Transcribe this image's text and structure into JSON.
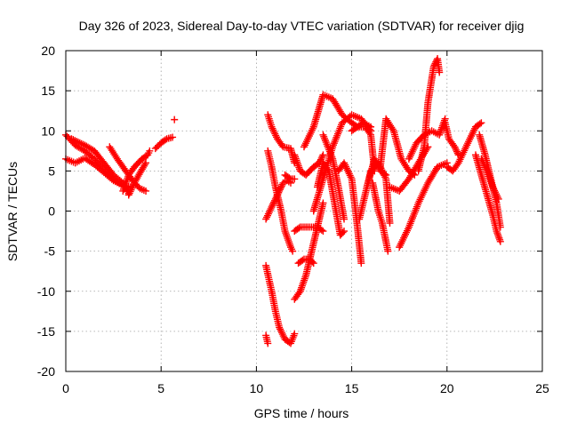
{
  "chart_data": {
    "type": "scatter",
    "title": "Day 326 of 2023, Sidereal Day-to-day VTEC variation (SDTVAR) for receiver djig",
    "xlabel": "GPS time / hours",
    "ylabel": "SDTVAR / TECUs",
    "xlim": [
      0,
      25
    ],
    "ylim": [
      -20,
      20
    ],
    "x_ticks": [
      0,
      5,
      10,
      15,
      20,
      25
    ],
    "y_ticks": [
      -20,
      -15,
      -10,
      -5,
      0,
      5,
      10,
      15,
      20
    ],
    "x_tick_labels": [
      "0",
      "5",
      "10",
      "15",
      "20",
      "25"
    ],
    "y_tick_labels": [
      "-20",
      "-15",
      "-10",
      "-5",
      "0",
      "5",
      "10",
      "15",
      "20"
    ],
    "grid": true,
    "marker": "plus",
    "color": "#ff0000",
    "series": [
      {
        "x": [
          0.0,
          0.5,
          1.0,
          1.5,
          2.0,
          2.5,
          3.0,
          3.3
        ],
        "y": [
          9.5,
          8.2,
          7.5,
          6.5,
          5.2,
          4.0,
          3.2,
          2.8
        ]
      },
      {
        "x": [
          0.0,
          0.5,
          1.0,
          1.5,
          2.0,
          2.5,
          3.0,
          3.4
        ],
        "y": [
          6.5,
          6.0,
          6.6,
          5.8,
          4.8,
          3.8,
          3.2,
          3.0
        ]
      },
      {
        "x": [
          0.3,
          1.0,
          1.5,
          2.0,
          2.5,
          3.0,
          3.3
        ],
        "y": [
          9.0,
          8.2,
          7.5,
          6.0,
          4.5,
          3.5,
          2.2
        ]
      },
      {
        "x": [
          2.3,
          2.7,
          3.0,
          3.3,
          3.6,
          3.9,
          4.2
        ],
        "y": [
          8.0,
          6.5,
          5.5,
          4.5,
          3.5,
          2.8,
          2.5
        ]
      },
      {
        "x": [
          3.0,
          3.3,
          3.6,
          4.0,
          4.3,
          4.4
        ],
        "y": [
          2.5,
          4.5,
          5.5,
          6.5,
          7.0,
          7.5
        ]
      },
      {
        "x": [
          3.3,
          3.6,
          3.9,
          4.2
        ],
        "y": [
          2.0,
          3.5,
          4.8,
          6.0
        ]
      },
      {
        "x": [
          4.7,
          5.0,
          5.3,
          5.6
        ],
        "y": [
          7.8,
          8.5,
          9.0,
          9.2
        ]
      },
      {
        "x": [
          5.7
        ],
        "y": [
          11.4
        ]
      },
      {
        "x": [
          10.5,
          10.8,
          11.0,
          11.2,
          11.5,
          11.8,
          12.0
        ],
        "y": [
          -6.8,
          -10.0,
          -12.5,
          -14.5,
          -16.0,
          -16.5,
          -15.3
        ]
      },
      {
        "x": [
          10.5,
          10.6
        ],
        "y": [
          -15.5,
          -16.5
        ]
      },
      {
        "x": [
          10.5,
          10.8,
          11.0,
          11.2,
          11.4,
          11.6,
          11.8
        ],
        "y": [
          -1.0,
          0.5,
          1.5,
          2.5,
          3.5,
          3.8,
          3.5
        ]
      },
      {
        "x": [
          10.6,
          10.8,
          11.0,
          11.3,
          11.5,
          11.8,
          11.9
        ],
        "y": [
          7.5,
          5.5,
          3.0,
          0.0,
          -2.5,
          -4.5,
          -5.0
        ]
      },
      {
        "x": [
          10.6,
          10.8,
          11.1,
          11.4,
          11.8,
          12.0
        ],
        "y": [
          12.0,
          10.5,
          9.0,
          8.0,
          7.8,
          6.0
        ]
      },
      {
        "x": [
          11.5,
          11.8,
          12.0
        ],
        "y": [
          4.5,
          4.0,
          4.0
        ]
      },
      {
        "x": [
          12.0,
          12.3,
          12.6,
          12.9,
          13.2,
          13.5
        ],
        "y": [
          -11.0,
          -10.0,
          -8.0,
          -5.0,
          -2.0,
          1.0
        ]
      },
      {
        "x": [
          12.2,
          12.5,
          12.8,
          13.0
        ],
        "y": [
          -6.5,
          -6.0,
          -6.0,
          -6.5
        ]
      },
      {
        "x": [
          12.0,
          12.3,
          12.7,
          13.2,
          13.5
        ],
        "y": [
          -2.5,
          -2.0,
          -2.0,
          -2.0,
          -2.5
        ]
      },
      {
        "x": [
          12.0,
          12.3,
          12.6,
          13.0,
          13.3,
          13.5
        ],
        "y": [
          7.0,
          5.0,
          4.5,
          5.5,
          6.0,
          7.0
        ]
      },
      {
        "x": [
          12.5,
          13.0,
          13.5,
          14.0,
          14.5,
          15.0,
          15.3,
          15.6,
          16.0
        ],
        "y": [
          8.0,
          10.5,
          14.5,
          14.0,
          12.0,
          11.0,
          10.5,
          11.0,
          10.5
        ]
      },
      {
        "x": [
          13.0,
          13.5,
          14.0,
          14.5,
          15.0,
          15.5,
          16.0
        ],
        "y": [
          0.0,
          4.0,
          8.0,
          11.0,
          12.0,
          11.5,
          10.0
        ]
      },
      {
        "x": [
          13.2,
          13.5,
          13.8,
          14.1,
          14.4,
          14.6
        ],
        "y": [
          3.0,
          6.0,
          5.0,
          1.0,
          -3.0,
          -2.5
        ]
      },
      {
        "x": [
          13.5,
          14.0,
          14.3,
          14.6
        ],
        "y": [
          9.5,
          6.5,
          3.0,
          -1.0
        ]
      },
      {
        "x": [
          14.3,
          14.6,
          15.0,
          15.3,
          15.5
        ],
        "y": [
          5.0,
          6.0,
          4.0,
          -2.0,
          -6.5
        ]
      },
      {
        "x": [
          15.0,
          15.3,
          15.7,
          16.0,
          16.2
        ],
        "y": [
          10.0,
          10.5,
          10.5,
          9.5,
          5.0
        ]
      },
      {
        "x": [
          15.4,
          15.8,
          16.0,
          16.4,
          16.8,
          17.0
        ],
        "y": [
          -1.0,
          3.0,
          5.0,
          6.0,
          4.0,
          -1.5
        ]
      },
      {
        "x": [
          15.8,
          16.2,
          16.5,
          16.8
        ],
        "y": [
          3.0,
          6.5,
          5.0,
          4.5
        ]
      },
      {
        "x": [
          16.1,
          16.4,
          16.6,
          16.9
        ],
        "y": [
          3.5,
          0.0,
          -1.5,
          -5.0
        ]
      },
      {
        "x": [
          16.5,
          16.8,
          17.2,
          17.6,
          18.0,
          18.3
        ],
        "y": [
          5.5,
          11.5,
          10.0,
          6.5,
          5.0,
          4.5
        ]
      },
      {
        "x": [
          17.5,
          18.0,
          18.5,
          19.0,
          19.5,
          20.0
        ],
        "y": [
          -4.5,
          -2.0,
          1.0,
          3.5,
          5.5,
          6.0
        ]
      },
      {
        "x": [
          17.0,
          17.5,
          18.0,
          18.5,
          19.0
        ],
        "y": [
          3.0,
          2.5,
          4.0,
          6.0,
          8.0
        ]
      },
      {
        "x": [
          18.5,
          18.8,
          19.0,
          19.3,
          19.5,
          19.6
        ],
        "y": [
          5.0,
          8.0,
          13.5,
          18.0,
          19.0,
          17.3
        ]
      },
      {
        "x": [
          18.0,
          18.4,
          18.8,
          19.2,
          19.6,
          19.9
        ],
        "y": [
          6.5,
          8.5,
          9.5,
          10.0,
          9.5,
          11.5
        ]
      },
      {
        "x": [
          19.9,
          20.1,
          20.4,
          20.6
        ],
        "y": [
          11.0,
          9.0,
          8.0,
          7.0
        ]
      },
      {
        "x": [
          20.0,
          20.3,
          20.6,
          21.0,
          21.5,
          21.8
        ],
        "y": [
          5.5,
          5.0,
          6.0,
          8.0,
          10.5,
          11.0
        ]
      },
      {
        "x": [
          21.5,
          21.8,
          22.1,
          22.4,
          22.6,
          22.8
        ],
        "y": [
          7.0,
          4.5,
          2.0,
          -0.5,
          -2.5,
          -3.8
        ]
      },
      {
        "x": [
          21.7,
          22.0,
          22.3,
          22.6,
          22.8
        ],
        "y": [
          9.5,
          7.0,
          4.0,
          1.0,
          -2.0
        ]
      },
      {
        "x": [
          21.8,
          22.1,
          22.4,
          22.7
        ],
        "y": [
          6.5,
          5.0,
          3.0,
          1.5
        ]
      }
    ]
  }
}
